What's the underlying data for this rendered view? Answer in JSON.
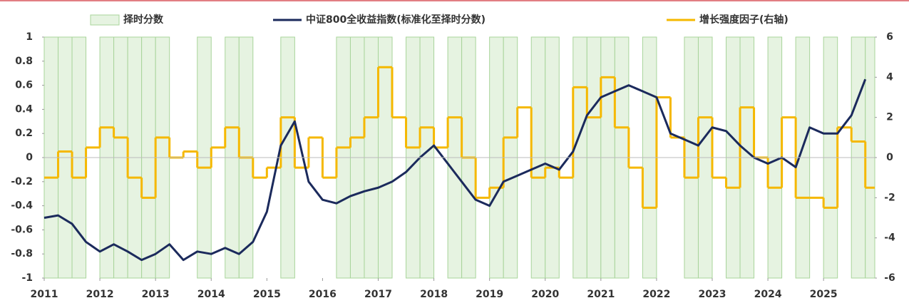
{
  "chart_data": {
    "type": "combo",
    "xlim": [
      2011,
      2025.92
    ],
    "xticks": [
      2011,
      2012,
      2013,
      2014,
      2015,
      2016,
      2017,
      2018,
      2019,
      2020,
      2021,
      2022,
      2023,
      2024,
      2025
    ],
    "ylim": [
      -1,
      1
    ],
    "yticks": [
      -1,
      -0.8,
      -0.6,
      -0.4,
      -0.2,
      0,
      0.2,
      0.4,
      0.6,
      0.8,
      1
    ],
    "y2lim": [
      -6,
      6
    ],
    "y2ticks": [
      -6,
      -4,
      -2,
      0,
      2,
      4,
      6
    ],
    "x": [
      2011,
      2011.25,
      2011.5,
      2011.75,
      2012,
      2012.25,
      2012.5,
      2012.75,
      2013,
      2013.25,
      2013.5,
      2013.75,
      2014,
      2014.25,
      2014.5,
      2014.75,
      2015,
      2015.25,
      2015.5,
      2015.75,
      2016,
      2016.25,
      2016.5,
      2016.75,
      2017,
      2017.25,
      2017.5,
      2017.75,
      2018,
      2018.25,
      2018.5,
      2018.75,
      2019,
      2019.25,
      2019.5,
      2019.75,
      2020,
      2020.25,
      2020.5,
      2020.75,
      2021,
      2021.25,
      2021.5,
      2021.75,
      2022,
      2022.25,
      2022.5,
      2022.75,
      2023,
      2023.25,
      2023.5,
      2023.75,
      2024,
      2024.25,
      2024.5,
      2024.75,
      2025,
      2025.25,
      2025.5,
      2025.75
    ],
    "series": [
      {
        "name": "择时分数",
        "kind": "bar",
        "color": "#e6f3e1",
        "values": [
          1,
          1,
          1,
          -1,
          1,
          1,
          1,
          1,
          1,
          -1,
          -1,
          1,
          -1,
          1,
          1,
          -1,
          -1,
          1,
          -1,
          -1,
          -1,
          1,
          1,
          1,
          1,
          -1,
          1,
          1,
          -1,
          1,
          1,
          -1,
          1,
          1,
          -1,
          1,
          1,
          -1,
          1,
          1,
          1,
          1,
          -1,
          1,
          -1,
          -1,
          1,
          1,
          -1,
          1,
          1,
          -1,
          1,
          -1,
          1,
          -1,
          1,
          -1,
          1,
          1
        ]
      },
      {
        "name": "中证800全收益指数(标准化至择时分数)",
        "kind": "line",
        "color": "#1b2a5c",
        "values": [
          -0.5,
          -0.48,
          -0.55,
          -0.7,
          -0.78,
          -0.72,
          -0.78,
          -0.85,
          -0.8,
          -0.72,
          -0.85,
          -0.78,
          -0.8,
          -0.75,
          -0.8,
          -0.7,
          -0.45,
          0.1,
          0.3,
          -0.2,
          -0.35,
          -0.38,
          -0.32,
          -0.28,
          -0.25,
          -0.2,
          -0.12,
          0,
          0.1,
          -0.05,
          -0.2,
          -0.35,
          -0.4,
          -0.2,
          -0.15,
          -0.1,
          -0.05,
          -0.1,
          0.05,
          0.35,
          0.5,
          0.55,
          0.6,
          0.55,
          0.5,
          0.2,
          0.15,
          0.1,
          0.25,
          0.22,
          0.1,
          0,
          -0.05,
          0,
          -0.08,
          0.25,
          0.2,
          0.2,
          0.35,
          0.65
        ]
      },
      {
        "name": "增长强度因子(右轴)",
        "kind": "step",
        "axis": "y2",
        "color": "#f5b800",
        "values": [
          -1,
          0.3,
          -1,
          0.5,
          1.5,
          1,
          -1,
          -2,
          1,
          0,
          0.3,
          -0.5,
          0.5,
          1.5,
          0,
          -1,
          -0.5,
          2,
          -0.5,
          1,
          -1,
          0.5,
          1,
          2,
          4.5,
          2,
          0.5,
          1.5,
          0.5,
          2,
          0,
          -2,
          -1.5,
          1,
          2.5,
          -1,
          -0.5,
          -1,
          3.5,
          2,
          4,
          1.5,
          -0.5,
          -2.5,
          3,
          1,
          -1,
          2,
          -1,
          -1.5,
          2.5,
          0,
          -1.5,
          2,
          -2,
          -2,
          -2.5,
          1.5,
          0.8,
          -1.5
        ]
      }
    ]
  }
}
